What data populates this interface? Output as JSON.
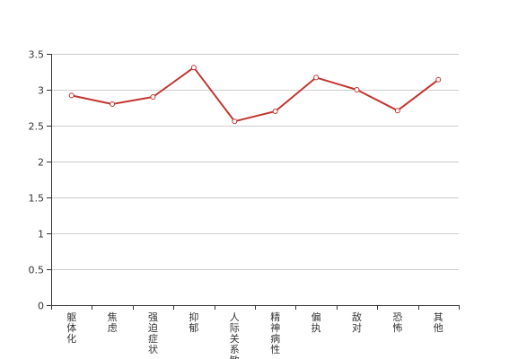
{
  "chart_data": {
    "type": "line",
    "categories": [
      "躯体化",
      "焦虑",
      "强迫症状",
      "抑郁",
      "人际关系敏感",
      "精神病性",
      "偏执",
      "敌对",
      "恐怖",
      "其他"
    ],
    "series": [
      {
        "values": [
          2.92,
          2.8,
          2.9,
          3.31,
          2.56,
          2.7,
          3.17,
          3.0,
          2.71,
          3.14
        ]
      }
    ],
    "ylim": [
      0,
      3.5
    ],
    "yticks": [
      "0",
      "0.5",
      "1",
      "1.5",
      "2",
      "2.5",
      "3",
      "3.5"
    ],
    "grid": true,
    "line_color": "#c23531",
    "grid_color": "#cccccc",
    "axis_color": "#333333"
  }
}
